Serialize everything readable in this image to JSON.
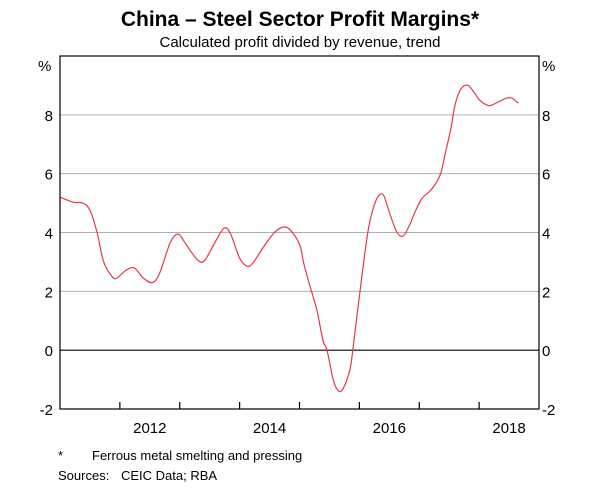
{
  "chart_data": {
    "type": "line",
    "title": "China – Steel Sector Profit Margins*",
    "subtitle": "Calculated profit divided by revenue, trend",
    "xlabel": "",
    "ylabel_left": "%",
    "ylabel_right": "%",
    "xlim": [
      2011.0,
      2019.0
    ],
    "ylim": [
      -2,
      10
    ],
    "yticks": [
      -2,
      0,
      2,
      4,
      6,
      8
    ],
    "ytick_labels": [
      "-2",
      "0",
      "2",
      "4",
      "6",
      "8"
    ],
    "xticks_minor": [
      2012,
      2013,
      2014,
      2015,
      2016,
      2017,
      2018
    ],
    "xtick_labels": [
      {
        "label": "2012",
        "at": 2012.5
      },
      {
        "label": "2014",
        "at": 2014.5
      },
      {
        "label": "2016",
        "at": 2016.5
      },
      {
        "label": "2018",
        "at": 2018.5
      }
    ],
    "grid": true,
    "legend": "none",
    "series": [
      {
        "name": "Profit margin",
        "color": "#e8374a",
        "x": [
          2011.0,
          2011.22,
          2011.38,
          2011.5,
          2011.62,
          2011.73,
          2011.87,
          2011.95,
          2012.09,
          2012.24,
          2012.39,
          2012.55,
          2012.67,
          2012.84,
          2012.97,
          2013.09,
          2013.17,
          2013.32,
          2013.42,
          2013.59,
          2013.74,
          2013.85,
          2014.0,
          2014.12,
          2014.22,
          2014.42,
          2014.59,
          2014.76,
          2014.89,
          2015.01,
          2015.07,
          2015.17,
          2015.29,
          2015.39,
          2015.46,
          2015.57,
          2015.66,
          2015.74,
          2015.84,
          2015.89,
          2016.01,
          2016.14,
          2016.24,
          2016.33,
          2016.41,
          2016.51,
          2016.63,
          2016.73,
          2016.83,
          2016.93,
          2017.04,
          2017.18,
          2017.28,
          2017.36,
          2017.44,
          2017.53,
          2017.59,
          2017.66,
          2017.74,
          2017.83,
          2017.91,
          2018.01,
          2018.13,
          2018.21,
          2018.35,
          2018.46,
          2018.55,
          2018.61,
          2018.66
        ],
        "values": [
          5.2,
          5.03,
          5.0,
          4.76,
          4.0,
          3.0,
          2.5,
          2.45,
          2.7,
          2.8,
          2.45,
          2.3,
          2.65,
          3.65,
          3.95,
          3.65,
          3.4,
          3.03,
          3.06,
          3.67,
          4.15,
          3.95,
          3.13,
          2.86,
          2.96,
          3.57,
          4.02,
          4.19,
          3.98,
          3.54,
          2.96,
          2.21,
          1.36,
          0.34,
          0.0,
          -1.05,
          -1.4,
          -1.26,
          -0.68,
          0.0,
          2.0,
          4.0,
          4.87,
          5.27,
          5.24,
          4.63,
          4.0,
          3.88,
          4.22,
          4.7,
          5.14,
          5.41,
          5.68,
          6.02,
          6.74,
          7.55,
          8.27,
          8.74,
          8.98,
          8.98,
          8.78,
          8.5,
          8.33,
          8.33,
          8.47,
          8.57,
          8.57,
          8.47,
          8.4
        ]
      }
    ]
  },
  "footnote": {
    "marker": "*",
    "text": "Ferrous metal smelting and pressing"
  },
  "sources": {
    "label": "Sources:",
    "text": "CEIC Data; RBA"
  }
}
